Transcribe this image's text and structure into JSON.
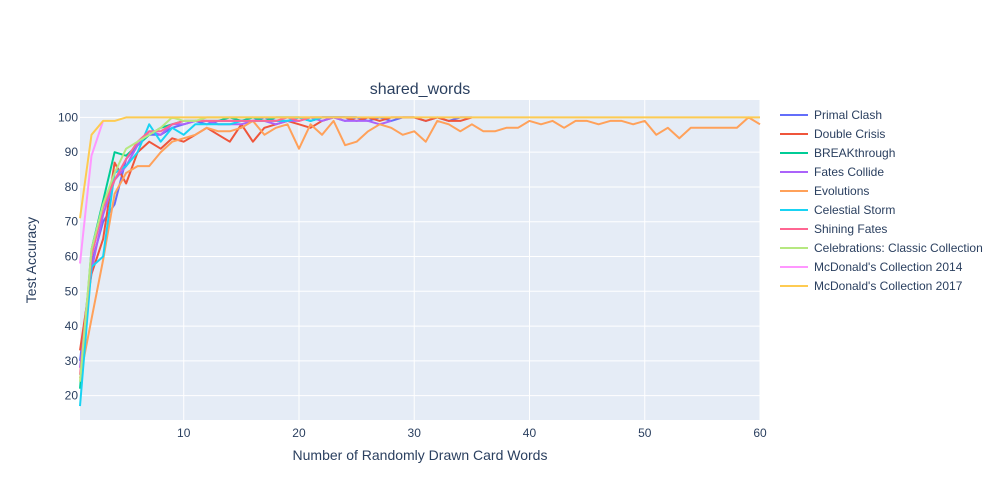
{
  "chart_data": {
    "type": "line",
    "title": "shared_words",
    "xlabel": "Number of Randomly Drawn Card Words",
    "ylabel": "Test Accuracy",
    "xlim": [
      1,
      60
    ],
    "ylim": [
      13,
      105
    ],
    "x_ticks": [
      10,
      20,
      30,
      40,
      50,
      60
    ],
    "y_ticks": [
      20,
      30,
      40,
      50,
      60,
      70,
      80,
      90,
      100
    ],
    "grid": true,
    "legend_position": "right",
    "colors": {
      "plot_bg": "#e5ecf6",
      "grid": "#ffffff",
      "text": "#2a3f5f"
    },
    "series": [
      {
        "name": "Primal Clash",
        "color": "#636efa",
        "x": [
          1,
          2,
          3,
          4,
          5,
          6,
          7,
          8,
          9,
          10,
          11,
          12,
          13,
          14,
          15,
          16,
          17,
          18,
          19,
          20,
          21,
          22,
          23,
          24,
          25,
          26,
          27,
          28,
          29,
          30,
          31,
          32,
          33,
          34,
          35
        ],
        "y": [
          30,
          58,
          70,
          75,
          88,
          92,
          95,
          95,
          97,
          98,
          99,
          98,
          99,
          99,
          99,
          99,
          100,
          99,
          99,
          100,
          99,
          100,
          100,
          99,
          100,
          99,
          100,
          99,
          100,
          100,
          99,
          100,
          99,
          100,
          100
        ]
      },
      {
        "name": "Double Crisis",
        "color": "#ef553b",
        "x": [
          1,
          2,
          3,
          4,
          5,
          6,
          7,
          8,
          9,
          10,
          11,
          12,
          13,
          14,
          15,
          16,
          17,
          18,
          19,
          20,
          21,
          22,
          23,
          24,
          25,
          26,
          27,
          28,
          29,
          30,
          31,
          32,
          33,
          34,
          35
        ],
        "y": [
          33,
          55,
          65,
          87,
          81,
          90,
          93,
          91,
          94,
          93,
          95,
          97,
          95,
          93,
          98,
          93,
          97,
          98,
          99,
          98,
          97,
          99,
          100,
          100,
          99,
          100,
          99,
          100,
          100,
          100,
          99,
          100,
          99,
          99,
          100
        ]
      },
      {
        "name": "BREAKthrough",
        "color": "#00cc96",
        "x": [
          1,
          2,
          3,
          4,
          5,
          6,
          7,
          8,
          9,
          10,
          11,
          12,
          13,
          14,
          15,
          16,
          17,
          18,
          19,
          20,
          21,
          22,
          23,
          24,
          25
        ],
        "y": [
          22,
          62,
          76,
          90,
          89,
          92,
          95,
          97,
          98,
          99,
          99,
          99,
          99,
          100,
          99,
          100,
          99,
          100,
          100,
          100,
          99,
          100,
          100,
          100,
          100
        ]
      },
      {
        "name": "Fates Collide",
        "color": "#ab63fa",
        "x": [
          1,
          2,
          3,
          4,
          5,
          6,
          7,
          8,
          9,
          10,
          11,
          12,
          13,
          14,
          15,
          16,
          17,
          18,
          19,
          20,
          21,
          22,
          23,
          24,
          25,
          26,
          27,
          28
        ],
        "y": [
          28,
          56,
          72,
          82,
          86,
          92,
          96,
          95,
          98,
          98,
          99,
          99,
          98,
          98,
          98,
          99,
          99,
          98,
          99,
          99,
          100,
          99,
          100,
          99,
          99,
          99,
          98,
          99
        ]
      },
      {
        "name": "Evolutions",
        "color": "#ffa15a",
        "x": [
          1,
          2,
          3,
          4,
          5,
          6,
          7,
          8,
          9,
          10,
          11,
          12,
          13,
          14,
          15,
          16,
          17,
          18,
          19,
          20,
          21,
          22,
          23,
          24,
          25,
          26,
          27,
          28,
          29,
          30,
          31,
          32,
          33,
          34,
          35,
          36,
          37,
          38,
          39,
          40,
          41,
          42,
          43,
          44,
          45,
          46,
          47,
          48,
          49,
          50,
          51,
          52,
          53,
          54,
          55,
          56,
          57,
          58,
          59,
          60
        ],
        "y": [
          25,
          42,
          59,
          78,
          84,
          86,
          86,
          90,
          93,
          94,
          95,
          97,
          96,
          96,
          97,
          99,
          95,
          97,
          98,
          91,
          98,
          95,
          99,
          92,
          93,
          96,
          98,
          97,
          95,
          96,
          93,
          99,
          98,
          96,
          98,
          96,
          96,
          97,
          97,
          99,
          98,
          99,
          97,
          99,
          99,
          98,
          99,
          99,
          98,
          99,
          95,
          97,
          94,
          97,
          97,
          97,
          97,
          97,
          100,
          98
        ]
      },
      {
        "name": "Celestial Storm",
        "color": "#19d3f3",
        "x": [
          1,
          2,
          3,
          4,
          5,
          6,
          7,
          8,
          9,
          10,
          11,
          12,
          13,
          14,
          15,
          16,
          17,
          18,
          19,
          20,
          21,
          22,
          23,
          24,
          25
        ],
        "y": [
          17,
          57,
          60,
          84,
          86,
          90,
          98,
          93,
          97,
          95,
          98,
          98,
          98,
          98,
          99,
          99,
          99,
          99,
          99,
          100,
          99,
          100,
          100,
          100,
          100
        ]
      },
      {
        "name": "Shining Fates",
        "color": "#ff6692",
        "x": [
          1,
          2,
          3,
          4,
          5,
          6,
          7,
          8,
          9,
          10,
          11,
          12,
          13,
          14,
          15,
          16,
          17,
          18,
          19,
          20,
          21,
          22,
          23,
          24,
          25
        ],
        "y": [
          26,
          60,
          74,
          82,
          88,
          93,
          96,
          96,
          98,
          99,
          99,
          99,
          99,
          99,
          99,
          99,
          99,
          99,
          100,
          99,
          100,
          100,
          100,
          100,
          100
        ]
      },
      {
        "name": "Celebrations: Classic Collection",
        "color": "#b6e880",
        "x": [
          1,
          2,
          3,
          4,
          5,
          6,
          7,
          8,
          9,
          10,
          11,
          12,
          13,
          14,
          15,
          16,
          17,
          18,
          19,
          20,
          21,
          22
        ],
        "y": [
          24,
          62,
          75,
          84,
          91,
          93,
          95,
          97,
          100,
          99,
          99,
          100,
          100,
          100,
          100,
          100,
          100,
          100,
          100,
          100,
          100,
          100
        ]
      },
      {
        "name": "McDonald's Collection 2014",
        "color": "#ff97ff",
        "x": [
          1,
          2,
          3
        ],
        "y": [
          58,
          89,
          99
        ]
      },
      {
        "name": "McDonald's Collection 2017",
        "color": "#fecb52",
        "x": [
          1,
          2,
          3,
          4,
          5,
          6,
          7,
          8,
          9,
          10,
          11,
          12,
          13,
          14,
          15,
          16,
          17,
          18,
          19,
          20,
          21,
          22,
          23,
          24,
          25,
          26,
          27,
          28,
          29,
          30,
          31,
          32,
          33,
          34,
          35,
          36,
          37,
          38,
          39,
          40,
          41,
          42,
          43,
          44,
          45,
          46,
          47,
          48,
          49,
          50,
          51,
          52,
          53,
          54,
          55,
          56,
          57,
          58,
          59,
          60
        ],
        "y": [
          71,
          95,
          99,
          99,
          100,
          100,
          100,
          100,
          100,
          100,
          100,
          100,
          100,
          100,
          100,
          100,
          100,
          100,
          100,
          100,
          100,
          100,
          100,
          100,
          100,
          100,
          100,
          100,
          100,
          100,
          100,
          100,
          100,
          100,
          100,
          100,
          100,
          100,
          100,
          100,
          100,
          100,
          100,
          100,
          100,
          100,
          100,
          100,
          100,
          100,
          100,
          100,
          100,
          100,
          100,
          100,
          100,
          100,
          100,
          100
        ]
      }
    ]
  }
}
